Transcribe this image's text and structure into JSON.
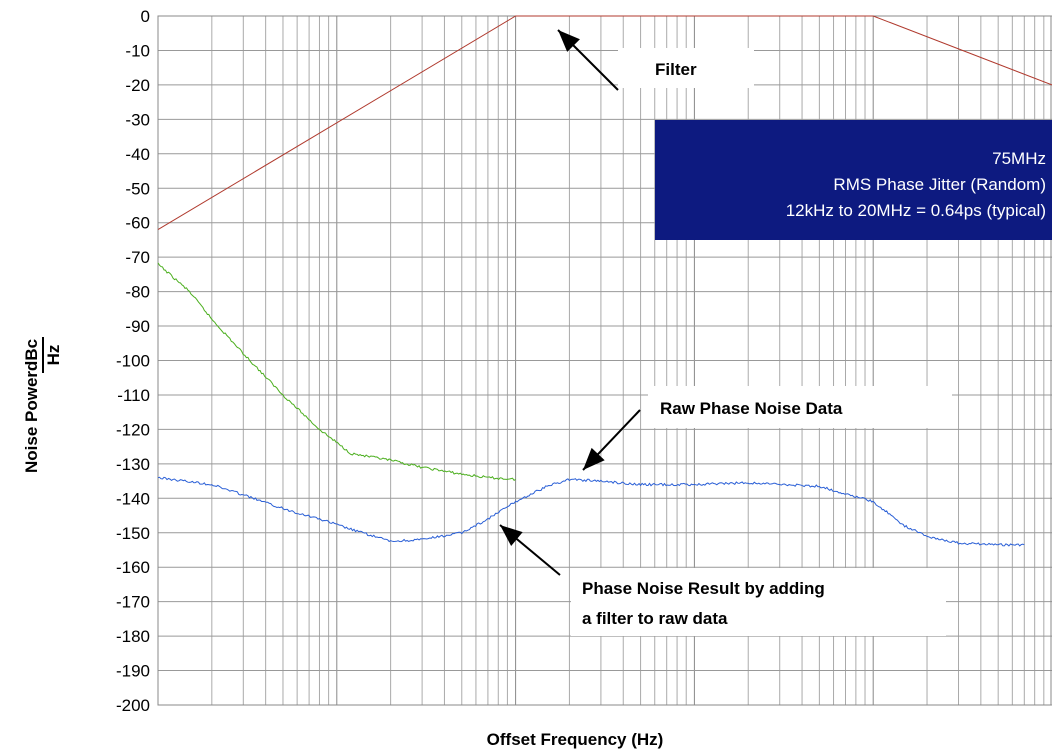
{
  "chart_data": {
    "type": "line",
    "title": "",
    "xlabel": "Offset Frequency (Hz)",
    "ylabel_prefix": "Noise Power",
    "ylabel_unit_numerator": "dBc",
    "ylabel_unit_denominator": "Hz",
    "ylim": [
      -200,
      0
    ],
    "y_ticks": [
      "0",
      "-10",
      "-20",
      "-30",
      "-40",
      "-50",
      "-60",
      "-70",
      "-80",
      "-90",
      "-100",
      "-110",
      "-120",
      "-130",
      "-140",
      "-150",
      "-160",
      "-170",
      "-180",
      "-190",
      "-200"
    ],
    "x_scale": "log",
    "xlim": [
      1000,
      100000000
    ],
    "x_tick_labels": [],
    "grid": true,
    "series": [
      {
        "key": "filter",
        "color": "#b03a2e",
        "x": [
          1000,
          100000,
          10000000,
          100000000
        ],
        "y": [
          -62,
          0,
          0,
          -20
        ]
      },
      {
        "key": "raw",
        "color": "#4caf1f",
        "x": [
          1000,
          1500,
          2000,
          3000,
          5000,
          8000,
          12000,
          20000,
          30000,
          50000,
          70000,
          100000
        ],
        "y": [
          -72,
          -80,
          -88,
          -98,
          -110,
          -120,
          -127,
          -129,
          -131,
          -133,
          -134,
          -134.5
        ]
      },
      {
        "key": "result",
        "color": "#2a5fd6",
        "x": [
          1000,
          2000,
          3000,
          5000,
          8000,
          12000,
          20000,
          30000,
          50000,
          70000,
          100000,
          150000,
          200000,
          300000,
          500000,
          1000000,
          2000000,
          5000000,
          10000000,
          15000000,
          20000000,
          30000000,
          50000000,
          70000000
        ],
        "y": [
          -134,
          -136,
          -139,
          -143,
          -146,
          -149,
          -152.5,
          -152,
          -150,
          -146,
          -141,
          -136.5,
          -134.5,
          -135,
          -136,
          -136,
          -135.5,
          -136.5,
          -141,
          -148,
          -151,
          -153,
          -153.5,
          -153.5
        ]
      }
    ],
    "annotations": [
      {
        "key": "filter",
        "text": "Filter",
        "arrow_to": [
          110000,
          -2
        ]
      },
      {
        "key": "raw",
        "text": "Raw Phase Noise Data",
        "arrow_to": [
          140000,
          -134
        ]
      },
      {
        "key": "result_line1",
        "text": "Phase Noise Result by adding",
        "arrow_to": [
          65000,
          -141
        ]
      },
      {
        "key": "result_line2",
        "text": "a filter to raw data"
      }
    ],
    "info_box": {
      "background": "#0d1a80",
      "lines": [
        "75MHz",
        "RMS Phase Jitter (Random)",
        "12kHz to 20MHz = 0.64ps (typical)"
      ]
    }
  }
}
